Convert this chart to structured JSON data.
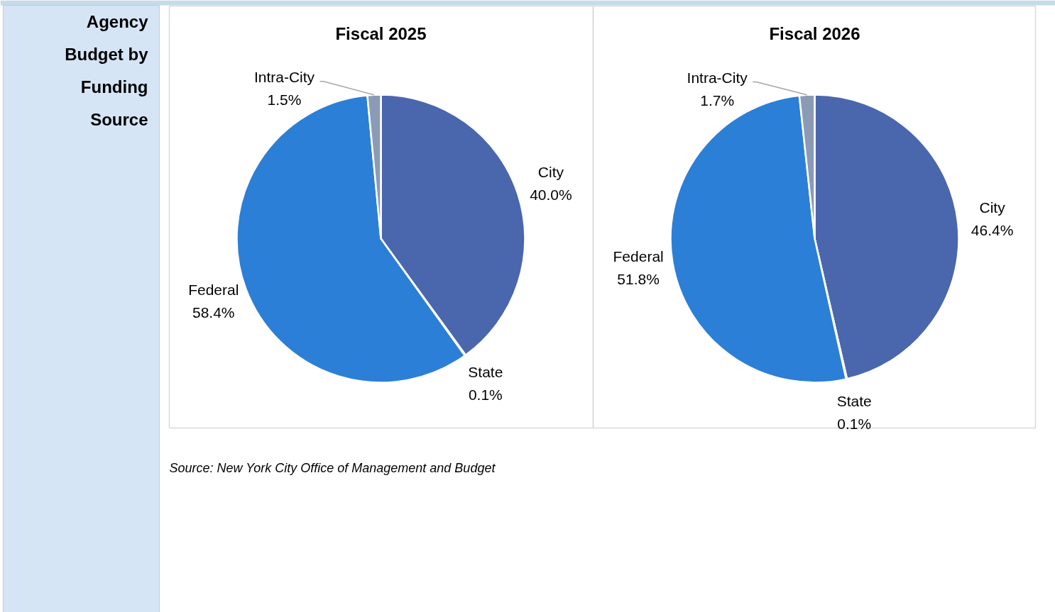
{
  "chart_data": [
    {
      "type": "other",
      "title": "Agency Budget by Funding Source"
    },
    {
      "type": "pie",
      "title": "Fiscal 2025",
      "categories": [
        "City",
        "State",
        "Federal",
        "Intra-City"
      ],
      "values": [
        40.0,
        0.1,
        58.4,
        1.5
      ],
      "colors": [
        "#4a66ad",
        "#c9c9c9",
        "#2b7fd6",
        "#8c9bb5"
      ],
      "value_labels": [
        "40.0%",
        "0.1%",
        "58.4%",
        "1.5%"
      ],
      "annotations": [
        "Source: New York City Office of Management and Budget"
      ]
    },
    {
      "type": "pie",
      "title": "Fiscal 2026",
      "categories": [
        "City",
        "State",
        "Federal",
        "Intra-City"
      ],
      "values": [
        46.4,
        0.1,
        51.8,
        1.7
      ],
      "colors": [
        "#4a66ad",
        "#c9c9c9",
        "#2b7fd6",
        "#8c9bb5"
      ],
      "value_labels": [
        "46.4%",
        "0.1%",
        "51.8%",
        "1.7%"
      ]
    }
  ]
}
